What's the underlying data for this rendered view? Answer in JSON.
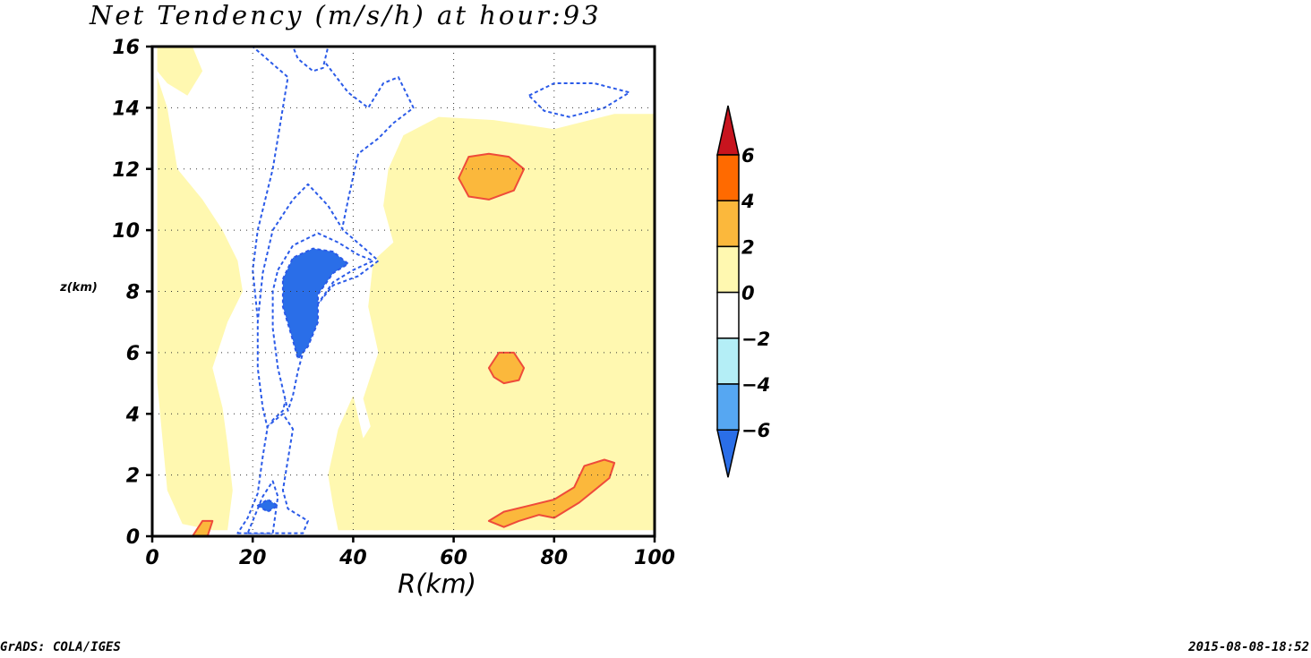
{
  "chart_data": {
    "type": "contour",
    "title": "Net Tendency (m/s/h) at hour:93",
    "xlabel": "R(km)",
    "ylabel": "z(km)",
    "xlim": [
      0,
      100
    ],
    "ylim": [
      0,
      16
    ],
    "x_ticks": [
      "0",
      "20",
      "40",
      "60",
      "80",
      "100"
    ],
    "y_ticks": [
      "0",
      "2",
      "4",
      "6",
      "8",
      "10",
      "12",
      "14",
      "16"
    ],
    "grid": "dotted",
    "colorbar": {
      "placement": "right",
      "labels": [
        "6",
        "4",
        "2",
        "0",
        "−2",
        "−4",
        "−6"
      ],
      "levels": [
        6,
        4,
        2,
        0,
        -2,
        -4,
        -6
      ],
      "bins": [
        {
          "range": "> 6",
          "color": "#c8141e"
        },
        {
          "range": "4 to 6",
          "color": "#ff6a00"
        },
        {
          "range": "2 to 4",
          "color": "#fbb83c"
        },
        {
          "range": "0 to 2",
          "color": "#fff8b0"
        },
        {
          "range": "-2 to 0",
          "color": "#ffffff"
        },
        {
          "range": "-4 to -2",
          "color": "#b4eef6"
        },
        {
          "range": "-6 to -4",
          "color": "#56a7f2"
        },
        {
          "range": "< -6",
          "color": "#2a6ee8"
        }
      ]
    },
    "regions": [
      {
        "name": "positive-background",
        "level": "0 to 2",
        "points": [
          [
            1,
            5
          ],
          [
            3,
            1.5
          ],
          [
            6,
            0.4
          ],
          [
            12,
            0.2
          ],
          [
            15,
            0.2
          ],
          [
            16,
            1.5
          ],
          [
            15,
            3
          ],
          [
            14,
            4.2
          ],
          [
            12,
            5.5
          ],
          [
            15,
            7
          ],
          [
            18,
            8
          ],
          [
            17,
            9
          ],
          [
            14,
            10
          ],
          [
            10,
            11
          ],
          [
            5,
            12
          ],
          [
            3,
            14
          ],
          [
            1,
            15
          ]
        ]
      },
      {
        "name": "upper-left-positive",
        "level": "0 to 2",
        "points": [
          [
            1,
            16
          ],
          [
            8,
            16
          ],
          [
            10,
            15.2
          ],
          [
            7,
            14.4
          ],
          [
            3,
            14.8
          ],
          [
            1,
            15.2
          ]
        ]
      },
      {
        "name": "middle-positive",
        "level": "0 to 2",
        "points": [
          [
            37,
            0.2
          ],
          [
            45,
            0.2
          ],
          [
            47,
            2
          ],
          [
            45,
            4
          ],
          [
            42,
            3.2
          ],
          [
            40,
            4.6
          ],
          [
            37,
            3.5
          ],
          [
            35,
            2
          ],
          [
            36,
            1
          ]
        ]
      },
      {
        "name": "outer-positive",
        "level": "0 to 2",
        "points": [
          [
            44,
            0.2
          ],
          [
            100,
            0.2
          ],
          [
            100,
            13.8
          ],
          [
            92,
            13.8
          ],
          [
            80,
            13.3
          ],
          [
            68,
            13.6
          ],
          [
            57,
            13.7
          ],
          [
            50,
            13.1
          ],
          [
            47,
            12
          ],
          [
            46,
            10.8
          ],
          [
            48,
            9.6
          ],
          [
            44,
            9
          ],
          [
            43,
            7.5
          ],
          [
            45,
            6
          ],
          [
            42,
            4.5
          ],
          [
            46,
            2
          ]
        ]
      },
      {
        "name": "upper-core-negative",
        "level": "-2 to -4",
        "points": [
          [
            20,
            16
          ],
          [
            32,
            16
          ],
          [
            39,
            14.5
          ],
          [
            43,
            14
          ],
          [
            46,
            14.8
          ],
          [
            49,
            15
          ],
          [
            52,
            14
          ],
          [
            48,
            13.5
          ],
          [
            45,
            13
          ],
          [
            41,
            12.5
          ],
          [
            39,
            11
          ],
          [
            37,
            9.4
          ],
          [
            34,
            8.1
          ],
          [
            30,
            6.3
          ],
          [
            27,
            5.2
          ],
          [
            26,
            4.2
          ],
          [
            23,
            3.8
          ],
          [
            22,
            5.5
          ],
          [
            20,
            8.7
          ],
          [
            21,
            10
          ],
          [
            24,
            12
          ],
          [
            26,
            14
          ],
          [
            27,
            15
          ]
        ]
      },
      {
        "name": "eyewall-negative",
        "level": "-2 to -4",
        "points": [
          [
            24,
            10
          ],
          [
            28,
            11
          ],
          [
            31,
            11.5
          ],
          [
            35,
            10.8
          ],
          [
            38,
            10
          ],
          [
            43,
            9.3
          ],
          [
            45,
            9
          ],
          [
            41,
            8.5
          ],
          [
            36,
            8.2
          ],
          [
            33,
            7.6
          ],
          [
            30,
            6.6
          ],
          [
            28,
            5.4
          ],
          [
            26,
            4.1
          ],
          [
            24,
            3.8
          ],
          [
            23,
            3.5
          ],
          [
            22,
            4.2
          ],
          [
            21,
            5.5
          ],
          [
            21,
            7
          ],
          [
            22,
            8.6
          ]
        ]
      },
      {
        "name": "low-level-inflow-negative",
        "level": "-2 to -4",
        "points": [
          [
            17,
            0.1
          ],
          [
            30,
            0.1
          ],
          [
            31,
            0.5
          ],
          [
            27,
            0.9
          ],
          [
            26,
            1.5
          ],
          [
            27,
            2.5
          ],
          [
            28,
            3.5
          ],
          [
            26,
            4
          ],
          [
            23,
            3.6
          ],
          [
            22,
            2.6
          ],
          [
            21,
            1.4
          ],
          [
            19,
            0.6
          ]
        ]
      },
      {
        "name": "upper-right-negative",
        "level": "-2 to -4",
        "points": [
          [
            75,
            14.4
          ],
          [
            80,
            14.8
          ],
          [
            88,
            14.8
          ],
          [
            95,
            14.5
          ],
          [
            90,
            14
          ],
          [
            83,
            13.7
          ],
          [
            78,
            13.9
          ]
        ]
      },
      {
        "name": "eyewall-moderate-negative",
        "level": "-4 to -6",
        "points": [
          [
            25,
            8.7
          ],
          [
            28,
            9.5
          ],
          [
            33,
            9.9
          ],
          [
            37,
            9.6
          ],
          [
            41,
            9.2
          ],
          [
            44,
            9
          ],
          [
            40,
            8.7
          ],
          [
            36,
            8.3
          ],
          [
            33,
            7.6
          ],
          [
            31,
            6.6
          ],
          [
            29,
            5.4
          ],
          [
            28,
            4.6
          ],
          [
            27,
            4.1
          ],
          [
            25,
            5.5
          ],
          [
            24,
            6.8
          ],
          [
            24,
            8
          ]
        ]
      },
      {
        "name": "upper-moderate-negative",
        "level": "-4 to -6",
        "points": [
          [
            28,
            16
          ],
          [
            35,
            16
          ],
          [
            34,
            15.3
          ],
          [
            32,
            15.2
          ],
          [
            29,
            15.6
          ]
        ]
      },
      {
        "name": "low-level-moderate-negative",
        "level": "-4 to -6",
        "points": [
          [
            19,
            0.1
          ],
          [
            24,
            0.1
          ],
          [
            25,
            1.3
          ],
          [
            24,
            1.8
          ],
          [
            22,
            1.3
          ]
        ]
      },
      {
        "name": "eyewall-strong-negative",
        "level": "< -6",
        "points": [
          [
            26,
            8.4
          ],
          [
            28,
            9.1
          ],
          [
            32,
            9.4
          ],
          [
            36,
            9.3
          ],
          [
            39,
            8.9
          ],
          [
            36,
            8.6
          ],
          [
            33,
            7.9
          ],
          [
            33,
            7
          ],
          [
            31,
            6.2
          ],
          [
            29,
            5.8
          ],
          [
            28,
            6.4
          ],
          [
            26,
            7.5
          ]
        ]
      },
      {
        "name": "low-level-strong-negative",
        "level": "< -6",
        "points": [
          [
            21,
            1
          ],
          [
            23,
            1.2
          ],
          [
            25,
            1
          ],
          [
            23,
            0.8
          ]
        ]
      },
      {
        "name": "upper-right-strong-positive",
        "level": "2 to 4",
        "points": [
          [
            61,
            11.7
          ],
          [
            63,
            12.4
          ],
          [
            67,
            12.5
          ],
          [
            71,
            12.4
          ],
          [
            74,
            12
          ],
          [
            72,
            11.3
          ],
          [
            67,
            11
          ],
          [
            63,
            11.1
          ]
        ]
      },
      {
        "name": "mid-level-strong-positive",
        "level": "2 to 4",
        "points": [
          [
            67,
            5.5
          ],
          [
            69,
            6
          ],
          [
            72,
            6
          ],
          [
            74,
            5.5
          ],
          [
            73,
            5.1
          ],
          [
            70,
            5
          ],
          [
            68,
            5.2
          ]
        ]
      },
      {
        "name": "low-right-strong-positive",
        "level": "2 to 4",
        "points": [
          [
            67,
            0.5
          ],
          [
            70,
            0.8
          ],
          [
            75,
            1
          ],
          [
            80,
            1.2
          ],
          [
            84,
            1.6
          ],
          [
            86,
            2.3
          ],
          [
            90,
            2.5
          ],
          [
            92,
            2.4
          ],
          [
            91,
            1.9
          ],
          [
            88,
            1.5
          ],
          [
            85,
            1.1
          ],
          [
            82,
            0.8
          ],
          [
            80,
            0.6
          ],
          [
            77,
            0.7
          ],
          [
            73,
            0.5
          ],
          [
            70,
            0.3
          ]
        ]
      },
      {
        "name": "lower-left-strong-positive",
        "level": "2 to 4",
        "points": [
          [
            8,
            0
          ],
          [
            10,
            0.5
          ],
          [
            12,
            0.5
          ],
          [
            11,
            0
          ]
        ]
      }
    ]
  },
  "footer": {
    "left": "GrADS: COLA/IGES",
    "right": "2015-08-08-18:52"
  }
}
